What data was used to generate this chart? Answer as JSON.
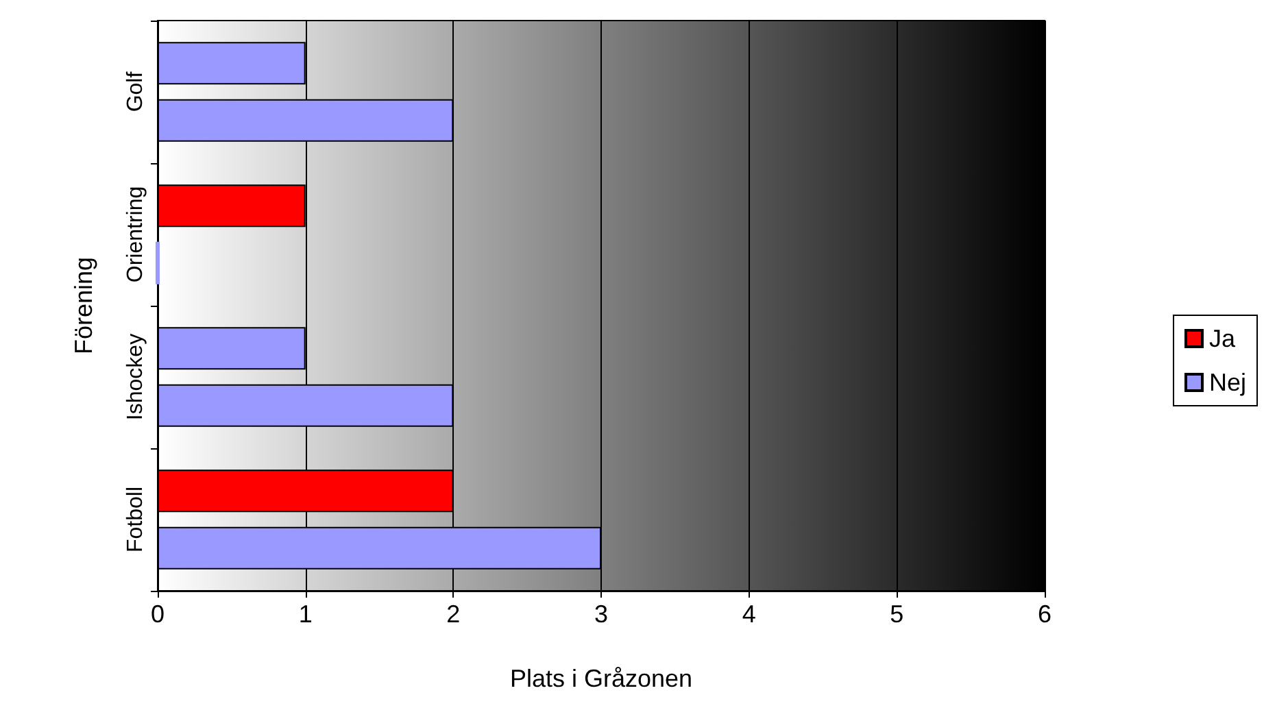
{
  "chart_data": {
    "type": "bar",
    "orientation": "horizontal",
    "xlabel": "Plats i Gråzonen",
    "ylabel": "Förening",
    "categories": [
      "Golf",
      "Orientring",
      "Ishockey",
      "Fotboll"
    ],
    "series": [
      {
        "name": "Ja",
        "color": "#ff0000",
        "colors": [
          "#9999ff",
          "#ff0000",
          "#9999ff",
          "#ff0000"
        ],
        "values": [
          1,
          1,
          1,
          2
        ]
      },
      {
        "name": "Nej",
        "color": "#9999ff",
        "values": [
          2,
          0,
          2,
          3
        ]
      }
    ],
    "xlim": [
      0,
      6
    ],
    "xticks": [
      0,
      1,
      2,
      3,
      4,
      5,
      6
    ],
    "grid": "x",
    "legend": "right"
  }
}
